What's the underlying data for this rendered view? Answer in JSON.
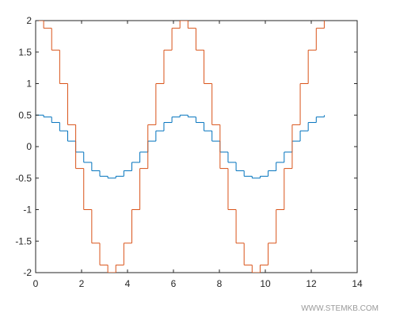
{
  "chart_data": {
    "type": "stairs",
    "x": [
      0,
      0.349,
      0.698,
      1.047,
      1.396,
      1.745,
      2.094,
      2.443,
      2.793,
      3.142,
      3.491,
      3.84,
      4.189,
      4.538,
      4.887,
      5.236,
      5.585,
      5.934,
      6.283,
      6.632,
      6.981,
      7.33,
      7.679,
      8.029,
      8.378,
      8.727,
      9.076,
      9.425,
      9.774,
      10.123,
      10.472,
      10.821,
      11.17,
      11.519,
      11.868,
      12.217,
      12.566
    ],
    "series": [
      {
        "color": "#0072BD",
        "values": [
          0.5,
          0.47,
          0.383,
          0.25,
          0.087,
          -0.087,
          -0.25,
          -0.383,
          -0.47,
          -0.5,
          -0.47,
          -0.383,
          -0.25,
          -0.087,
          0.087,
          0.25,
          0.383,
          0.47,
          0.5,
          0.47,
          0.383,
          0.25,
          0.087,
          -0.087,
          -0.25,
          -0.383,
          -0.47,
          -0.5,
          -0.47,
          -0.383,
          -0.25,
          -0.087,
          0.087,
          0.25,
          0.383,
          0.47,
          0.5
        ]
      },
      {
        "color": "#D95319",
        "values": [
          2,
          1.879,
          1.532,
          1,
          0.347,
          -0.347,
          -1,
          -1.532,
          -1.879,
          -2,
          -1.879,
          -1.532,
          -1,
          -0.347,
          0.347,
          1,
          1.532,
          1.879,
          2,
          1.879,
          1.532,
          1,
          0.347,
          -0.347,
          -1,
          -1.532,
          -1.879,
          -2,
          -1.879,
          -1.532,
          -1,
          -0.347,
          0.347,
          1,
          1.532,
          1.879,
          2
        ]
      }
    ],
    "xlim": [
      0,
      14
    ],
    "xticks": [
      0,
      2,
      4,
      6,
      8,
      10,
      12,
      14
    ],
    "ylim": [
      -2,
      2
    ],
    "yticks": [
      -2,
      -1.5,
      -1,
      -0.5,
      0,
      0.5,
      1,
      1.5,
      2
    ],
    "watermark": "WWW.STEMKB.COM"
  }
}
